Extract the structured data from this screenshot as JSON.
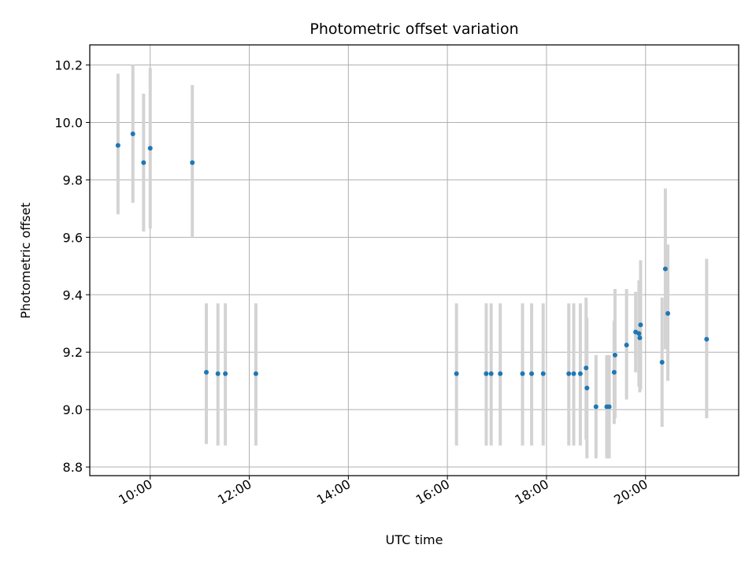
{
  "chart_data": {
    "type": "scatter",
    "title": "Photometric offset variation",
    "xlabel": "UTC time",
    "ylabel": "Photometric offset",
    "x_ticks": [
      "10:00",
      "12:00",
      "14:00",
      "16:00",
      "18:00",
      "20:00"
    ],
    "x_tick_hours": [
      10,
      12,
      14,
      16,
      18,
      20
    ],
    "y_ticks": [
      "8.8",
      "9.0",
      "9.2",
      "9.4",
      "9.6",
      "9.8",
      "10.0",
      "10.2"
    ],
    "y_tick_values": [
      8.8,
      9.0,
      9.2,
      9.4,
      9.6,
      9.8,
      10.0,
      10.2
    ],
    "xlim_hours": [
      8.78,
      21.88
    ],
    "ylim": [
      8.77,
      10.27
    ],
    "grid": true,
    "colors": {
      "points": "#1f77b4",
      "error_bars": "#d3d3d3",
      "grid": "#b0b0b0"
    },
    "series": [
      {
        "points": [
          {
            "x": "09:21",
            "y": 9.92,
            "ylow": 9.68,
            "yhigh": 10.17
          },
          {
            "x": "09:39",
            "y": 9.96,
            "ylow": 9.72,
            "yhigh": 10.2
          },
          {
            "x": "09:52",
            "y": 9.86,
            "ylow": 9.62,
            "yhigh": 10.1
          },
          {
            "x": "10:00",
            "y": 9.91,
            "ylow": 9.63,
            "yhigh": 10.19
          },
          {
            "x": "10:51",
            "y": 9.86,
            "ylow": 9.6,
            "yhigh": 10.13
          },
          {
            "x": "11:08",
            "y": 9.13,
            "ylow": 8.88,
            "yhigh": 9.37
          },
          {
            "x": "11:22",
            "y": 9.125,
            "ylow": 8.875,
            "yhigh": 9.37
          },
          {
            "x": "11:31",
            "y": 9.125,
            "ylow": 8.875,
            "yhigh": 9.37
          },
          {
            "x": "12:08",
            "y": 9.125,
            "ylow": 8.875,
            "yhigh": 9.37
          },
          {
            "x": "16:11",
            "y": 9.125,
            "ylow": 8.875,
            "yhigh": 9.37
          },
          {
            "x": "16:47",
            "y": 9.125,
            "ylow": 8.875,
            "yhigh": 9.37
          },
          {
            "x": "16:53",
            "y": 9.125,
            "ylow": 8.875,
            "yhigh": 9.37
          },
          {
            "x": "17:04",
            "y": 9.125,
            "ylow": 8.875,
            "yhigh": 9.37
          },
          {
            "x": "17:31",
            "y": 9.125,
            "ylow": 8.875,
            "yhigh": 9.37
          },
          {
            "x": "17:42",
            "y": 9.125,
            "ylow": 8.875,
            "yhigh": 9.37
          },
          {
            "x": "17:56",
            "y": 9.125,
            "ylow": 8.875,
            "yhigh": 9.37
          },
          {
            "x": "18:27",
            "y": 9.125,
            "ylow": 8.875,
            "yhigh": 9.37
          },
          {
            "x": "18:33",
            "y": 9.125,
            "ylow": 8.875,
            "yhigh": 9.37
          },
          {
            "x": "18:41",
            "y": 9.125,
            "ylow": 8.875,
            "yhigh": 9.37
          },
          {
            "x": "18:48",
            "y": 9.145,
            "ylow": 8.895,
            "yhigh": 9.39
          },
          {
            "x": "18:49",
            "y": 9.075,
            "ylow": 8.83,
            "yhigh": 9.32
          },
          {
            "x": "19:00",
            "y": 9.01,
            "ylow": 8.83,
            "yhigh": 9.19
          },
          {
            "x": "19:13",
            "y": 9.01,
            "ylow": 8.83,
            "yhigh": 9.19
          },
          {
            "x": "19:16",
            "y": 9.01,
            "ylow": 8.83,
            "yhigh": 9.19
          },
          {
            "x": "19:22",
            "y": 9.13,
            "ylow": 8.95,
            "yhigh": 9.31
          },
          {
            "x": "19:23",
            "y": 9.19,
            "ylow": 8.97,
            "yhigh": 9.42
          },
          {
            "x": "19:37",
            "y": 9.225,
            "ylow": 9.035,
            "yhigh": 9.42
          },
          {
            "x": "19:48",
            "y": 9.27,
            "ylow": 9.13,
            "yhigh": 9.41
          },
          {
            "x": "19:52",
            "y": 9.265,
            "ylow": 9.08,
            "yhigh": 9.45
          },
          {
            "x": "19:53",
            "y": 9.25,
            "ylow": 9.06,
            "yhigh": 9.45
          },
          {
            "x": "19:54",
            "y": 9.295,
            "ylow": 9.07,
            "yhigh": 9.52
          },
          {
            "x": "20:20",
            "y": 9.165,
            "ylow": 8.94,
            "yhigh": 9.39
          },
          {
            "x": "20:24",
            "y": 9.49,
            "ylow": 9.21,
            "yhigh": 9.77
          },
          {
            "x": "20:27",
            "y": 9.335,
            "ylow": 9.1,
            "yhigh": 9.575
          },
          {
            "x": "21:14",
            "y": 9.245,
            "ylow": 8.97,
            "yhigh": 9.525
          }
        ]
      }
    ]
  }
}
